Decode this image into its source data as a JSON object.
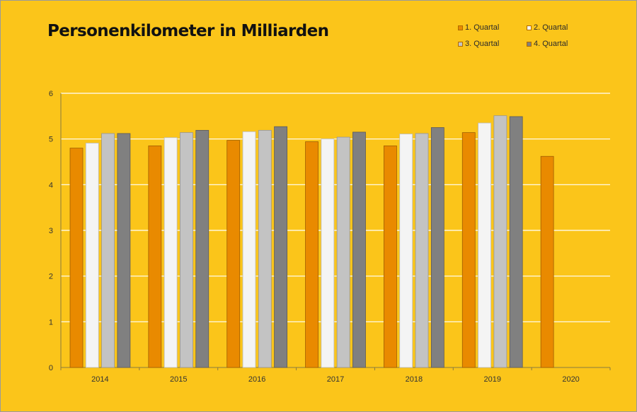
{
  "chart_data": {
    "type": "bar",
    "title": "Personenkilometer in Milliarden",
    "xlabel": "",
    "ylabel": "",
    "categories": [
      "2014",
      "2015",
      "2016",
      "2017",
      "2018",
      "2019",
      "2020"
    ],
    "ylim": [
      0,
      6
    ],
    "yticks": [
      "0",
      "1",
      "2",
      "3",
      "4",
      "5",
      "6"
    ],
    "grid": true,
    "legend_position": "top-right",
    "series": [
      {
        "name": "1. Quartal",
        "color": "#e98a00",
        "values": [
          4.8,
          4.85,
          4.97,
          4.94,
          4.85,
          5.14,
          4.62
        ]
      },
      {
        "name": "2. Quartal",
        "color": "#f4f4f4",
        "values": [
          4.91,
          5.03,
          5.16,
          5.0,
          5.11,
          5.35,
          null
        ]
      },
      {
        "name": "3. Quartal",
        "color": "#c3c3c3",
        "values": [
          5.12,
          5.14,
          5.19,
          5.04,
          5.12,
          5.51,
          null
        ]
      },
      {
        "name": "4. Quartal",
        "color": "#808080",
        "values": [
          5.12,
          5.19,
          5.27,
          5.15,
          5.25,
          5.49,
          null
        ]
      }
    ]
  }
}
